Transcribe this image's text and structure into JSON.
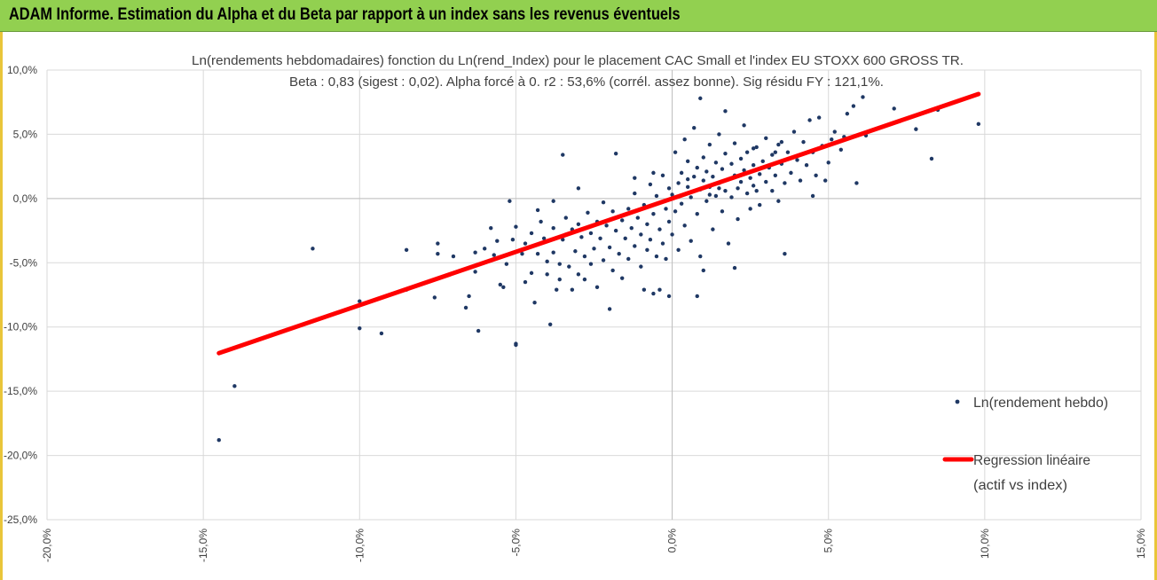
{
  "header": {
    "title": "ADAM Informe. Estimation du Alpha et du Beta par rapport à un index sans les revenus éventuels"
  },
  "colors": {
    "header_bg": "#92d050",
    "points": "#1f3864",
    "regression": "#ff0000",
    "grid": "#d9d9d9",
    "frame_accent": "#e9c53a"
  },
  "chart_data": {
    "type": "scatter",
    "title_line1": "Ln(rendements hebdomadaires) fonction du Ln(rend_Index) pour le placement CAC Small et l'index EU STOXX 600 GROSS TR.",
    "title_line2": "Beta : 0,83 (sigest : 0,02). Alpha forcé à 0. r2 : 53,6% (corrél. assez bonne). Sig résidu FY : 121,1%.",
    "xlim": [
      -0.2,
      0.15
    ],
    "ylim": [
      -0.25,
      0.1
    ],
    "x_ticks": [
      -0.2,
      -0.15,
      -0.1,
      -0.05,
      0.0,
      0.05,
      0.1,
      0.15
    ],
    "y_ticks": [
      -0.25,
      -0.2,
      -0.15,
      -0.1,
      -0.05,
      0.0,
      0.05,
      0.1
    ],
    "x_tick_labels": [
      "-20,0%",
      "-15,0%",
      "-10,0%",
      "-5,0%",
      "0,0%",
      "5,0%",
      "10,0%",
      "15,0%"
    ],
    "y_tick_labels": [
      "-25,0%",
      "-20,0%",
      "-15,0%",
      "-10,0%",
      "-5,0%",
      "0,0%",
      "5,0%",
      "10,0%"
    ],
    "grid": true,
    "legend_position": "right",
    "series": [
      {
        "name": "Ln(rendement hebdo)",
        "kind": "scatter",
        "color": "#1f3864",
        "points": [
          [
            -0.145,
            -0.188
          ],
          [
            -0.14,
            -0.146
          ],
          [
            -0.115,
            -0.039
          ],
          [
            -0.1,
            -0.101
          ],
          [
            -0.1,
            -0.08
          ],
          [
            -0.093,
            -0.105
          ],
          [
            -0.085,
            -0.04
          ],
          [
            -0.085,
            -0.071
          ],
          [
            -0.076,
            -0.077
          ],
          [
            -0.075,
            -0.035
          ],
          [
            -0.075,
            -0.043
          ],
          [
            -0.07,
            -0.045
          ],
          [
            -0.066,
            -0.085
          ],
          [
            -0.065,
            -0.076
          ],
          [
            -0.063,
            -0.042
          ],
          [
            -0.063,
            -0.057
          ],
          [
            -0.062,
            -0.103
          ],
          [
            -0.06,
            -0.039
          ],
          [
            -0.058,
            -0.023
          ],
          [
            -0.057,
            -0.044
          ],
          [
            -0.056,
            -0.033
          ],
          [
            -0.055,
            -0.067
          ],
          [
            -0.054,
            -0.069
          ],
          [
            -0.053,
            -0.051
          ],
          [
            -0.052,
            -0.002
          ],
          [
            -0.051,
            -0.032
          ],
          [
            -0.05,
            -0.022
          ],
          [
            -0.05,
            -0.113
          ],
          [
            -0.048,
            -0.043
          ],
          [
            -0.047,
            -0.035
          ],
          [
            -0.047,
            -0.065
          ],
          [
            -0.045,
            -0.027
          ],
          [
            -0.045,
            -0.058
          ],
          [
            -0.044,
            -0.081
          ],
          [
            -0.043,
            -0.043
          ],
          [
            -0.042,
            -0.018
          ],
          [
            -0.041,
            -0.031
          ],
          [
            -0.04,
            -0.059
          ],
          [
            -0.04,
            -0.049
          ],
          [
            -0.039,
            -0.098
          ],
          [
            -0.038,
            -0.023
          ],
          [
            -0.038,
            -0.042
          ],
          [
            -0.037,
            -0.071
          ],
          [
            -0.036,
            -0.051
          ],
          [
            -0.036,
            -0.063
          ],
          [
            -0.035,
            -0.032
          ],
          [
            -0.035,
            0.034
          ],
          [
            -0.034,
            -0.015
          ],
          [
            -0.033,
            -0.053
          ],
          [
            -0.032,
            -0.024
          ],
          [
            -0.032,
            -0.071
          ],
          [
            -0.031,
            -0.041
          ],
          [
            -0.03,
            -0.059
          ],
          [
            -0.03,
            -0.02
          ],
          [
            -0.029,
            -0.03
          ],
          [
            -0.028,
            -0.045
          ],
          [
            -0.028,
            -0.063
          ],
          [
            -0.027,
            -0.011
          ],
          [
            -0.026,
            -0.027
          ],
          [
            -0.026,
            -0.051
          ],
          [
            -0.025,
            -0.039
          ],
          [
            -0.024,
            -0.018
          ],
          [
            -0.024,
            -0.069
          ],
          [
            -0.023,
            -0.031
          ],
          [
            -0.022,
            -0.003
          ],
          [
            -0.022,
            -0.048
          ],
          [
            -0.021,
            -0.021
          ],
          [
            -0.02,
            -0.086
          ],
          [
            -0.02,
            -0.038
          ],
          [
            -0.019,
            -0.01
          ],
          [
            -0.019,
            -0.056
          ],
          [
            -0.018,
            0.035
          ],
          [
            -0.018,
            -0.025
          ],
          [
            -0.017,
            -0.043
          ],
          [
            -0.016,
            -0.017
          ],
          [
            -0.016,
            -0.062
          ],
          [
            -0.015,
            -0.031
          ],
          [
            -0.014,
            -0.008
          ],
          [
            -0.014,
            -0.047
          ],
          [
            -0.013,
            -0.023
          ],
          [
            -0.012,
            -0.037
          ],
          [
            -0.012,
            0.004
          ],
          [
            -0.011,
            -0.015
          ],
          [
            -0.01,
            -0.053
          ],
          [
            -0.01,
            -0.028
          ],
          [
            -0.009,
            -0.071
          ],
          [
            -0.009,
            -0.005
          ],
          [
            -0.008,
            -0.04
          ],
          [
            -0.008,
            -0.02
          ],
          [
            -0.007,
            0.011
          ],
          [
            -0.007,
            -0.032
          ],
          [
            -0.006,
            -0.074
          ],
          [
            -0.006,
            -0.012
          ],
          [
            -0.005,
            -0.045
          ],
          [
            -0.005,
            0.002
          ],
          [
            -0.004,
            -0.024
          ],
          [
            -0.004,
            -0.071
          ],
          [
            -0.003,
            -0.035
          ],
          [
            -0.003,
            0.018
          ],
          [
            -0.002,
            -0.008
          ],
          [
            -0.002,
            -0.047
          ],
          [
            -0.001,
            -0.018
          ],
          [
            -0.001,
            0.008
          ],
          [
            0.0,
            -0.028
          ],
          [
            0.0,
            0.003
          ],
          [
            0.001,
            0.036
          ],
          [
            0.001,
            -0.01
          ],
          [
            0.002,
            0.012
          ],
          [
            0.002,
            -0.04
          ],
          [
            0.003,
            0.02
          ],
          [
            0.003,
            -0.004
          ],
          [
            0.004,
            0.046
          ],
          [
            0.004,
            -0.021
          ],
          [
            0.005,
            0.009
          ],
          [
            0.005,
            0.029
          ],
          [
            0.006,
            -0.033
          ],
          [
            0.006,
            0.001
          ],
          [
            0.007,
            0.017
          ],
          [
            0.007,
            0.055
          ],
          [
            0.008,
            -0.012
          ],
          [
            0.008,
            0.024
          ],
          [
            0.009,
            0.007
          ],
          [
            0.009,
            -0.045
          ],
          [
            0.01,
            0.014
          ],
          [
            0.01,
            0.032
          ],
          [
            0.011,
            -0.002
          ],
          [
            0.011,
            0.021
          ],
          [
            0.012,
            0.042
          ],
          [
            0.012,
            0.009
          ],
          [
            0.013,
            -0.024
          ],
          [
            0.013,
            0.017
          ],
          [
            0.014,
            0.028
          ],
          [
            0.014,
            0.002
          ],
          [
            0.015,
            0.05
          ],
          [
            0.015,
            0.012
          ],
          [
            0.016,
            -0.01
          ],
          [
            0.016,
            0.023
          ],
          [
            0.017,
            0.035
          ],
          [
            0.017,
            0.006
          ],
          [
            0.018,
            0.015
          ],
          [
            0.018,
            -0.035
          ],
          [
            0.019,
            0.027
          ],
          [
            0.019,
            0.001
          ],
          [
            0.02,
            0.043
          ],
          [
            0.02,
            0.018
          ],
          [
            0.021,
            0.008
          ],
          [
            0.021,
            -0.016
          ],
          [
            0.022,
            0.031
          ],
          [
            0.022,
            0.013
          ],
          [
            0.023,
            0.057
          ],
          [
            0.023,
            0.022
          ],
          [
            0.024,
            0.004
          ],
          [
            0.024,
            0.036
          ],
          [
            0.025,
            0.016
          ],
          [
            0.025,
            -0.008
          ],
          [
            0.026,
            0.026
          ],
          [
            0.026,
            0.01
          ],
          [
            0.027,
            0.04
          ],
          [
            0.028,
            0.019
          ],
          [
            0.028,
            -0.005
          ],
          [
            0.029,
            0.029
          ],
          [
            0.03,
            0.013
          ],
          [
            0.03,
            0.047
          ],
          [
            0.031,
            0.024
          ],
          [
            0.032,
            0.006
          ],
          [
            0.032,
            0.034
          ],
          [
            0.033,
            0.018
          ],
          [
            0.034,
            0.042
          ],
          [
            0.034,
            -0.002
          ],
          [
            0.035,
            0.027
          ],
          [
            0.036,
            0.012
          ],
          [
            0.036,
            -0.043
          ],
          [
            0.037,
            0.036
          ],
          [
            0.038,
            0.02
          ],
          [
            0.039,
            0.052
          ],
          [
            0.04,
            0.03
          ],
          [
            0.041,
            0.014
          ],
          [
            0.042,
            0.044
          ],
          [
            0.043,
            0.026
          ],
          [
            0.044,
            0.061
          ],
          [
            0.045,
            0.036
          ],
          [
            0.046,
            0.018
          ],
          [
            0.047,
            0.063
          ],
          [
            0.048,
            0.041
          ],
          [
            0.049,
            0.014
          ],
          [
            0.05,
            0.028
          ],
          [
            0.051,
            0.046
          ],
          [
            0.052,
            0.052
          ],
          [
            0.054,
            0.038
          ],
          [
            0.055,
            0.048
          ],
          [
            0.056,
            0.066
          ],
          [
            0.058,
            0.072
          ],
          [
            0.059,
            0.012
          ],
          [
            0.061,
            0.079
          ],
          [
            0.062,
            0.049
          ],
          [
            0.071,
            0.07
          ],
          [
            0.078,
            0.054
          ],
          [
            0.083,
            0.031
          ],
          [
            0.085,
            0.069
          ],
          [
            0.098,
            0.058
          ],
          [
            0.009,
            0.078
          ],
          [
            0.017,
            0.068
          ],
          [
            0.033,
            0.036
          ],
          [
            0.008,
            -0.076
          ],
          [
            -0.05,
            -0.114
          ],
          [
            0.045,
            0.002
          ],
          [
            0.035,
            0.044
          ],
          [
            0.026,
            0.039
          ],
          [
            -0.043,
            -0.009
          ],
          [
            -0.001,
            -0.076
          ],
          [
            0.01,
            -0.056
          ],
          [
            0.02,
            -0.054
          ],
          [
            -0.038,
            -0.002
          ],
          [
            -0.03,
            0.008
          ],
          [
            -0.012,
            0.016
          ],
          [
            0.027,
            0.006
          ],
          [
            0.015,
            0.008
          ],
          [
            0.005,
            0.015
          ],
          [
            -0.006,
            0.02
          ],
          [
            0.012,
            0.003
          ]
        ]
      },
      {
        "name": "Regression linéaire\n(actif vs index)",
        "kind": "line",
        "color": "#ff0000",
        "beta": 0.83,
        "x_range": [
          -0.145,
          0.098
        ]
      }
    ]
  },
  "legend": {
    "scatter_label": "Ln(rendement hebdo)",
    "line_label_1": "Regression linéaire",
    "line_label_2": "(actif vs index)"
  }
}
